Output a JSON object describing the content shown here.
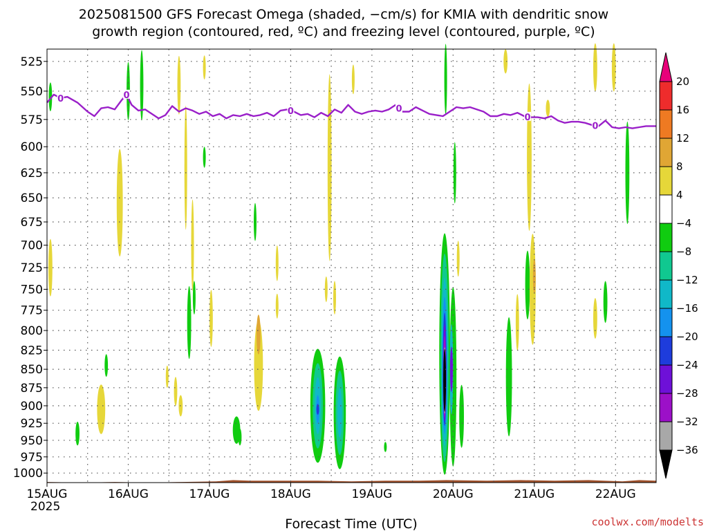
{
  "chart_data": {
    "type": "heatmap",
    "title_lines": [
      "2025081500 GFS Forecast Omega (shaded, −cm/s) for KMIA with dendritic snow",
      "growth region (contoured, red, ºC) and freezing level (contoured, purple, ºC)"
    ],
    "xlabel": "Forecast Time (UTC)",
    "ylabel": "",
    "x_year_label": "2025",
    "x_ticks": [
      {
        "label": "15AUG",
        "hour": 0
      },
      {
        "label": "16AUG",
        "hour": 24
      },
      {
        "label": "17AUG",
        "hour": 48
      },
      {
        "label": "18AUG",
        "hour": 72
      },
      {
        "label": "19AUG",
        "hour": 96
      },
      {
        "label": "20AUG",
        "hour": 120
      },
      {
        "label": "21AUG",
        "hour": 144
      },
      {
        "label": "22AUG",
        "hour": 168
      }
    ],
    "xlim_hours": [
      0,
      180
    ],
    "y_ticks": [
      "525",
      "550",
      "575",
      "600",
      "625",
      "650",
      "675",
      "700",
      "725",
      "750",
      "775",
      "800",
      "825",
      "850",
      "875",
      "900",
      "925",
      "950",
      "975",
      "1000"
    ],
    "y_scale": "log-pressure",
    "ylim": [
      1015,
      515
    ],
    "grid": true,
    "colorbar": {
      "labels": [
        "20",
        "16",
        "12",
        "8",
        "4",
        "−4",
        "−8",
        "−12",
        "−16",
        "−20",
        "−24",
        "−28",
        "−32",
        "−36"
      ],
      "colors": [
        "#e8007a",
        "#ee2c2c",
        "#ee7a22",
        "#e0a634",
        "#e6d739",
        "#ffffff",
        "#10cc10",
        "#10c890",
        "#10b8c8",
        "#1492ee",
        "#1e3cdc",
        "#6e10d8",
        "#9c10c8",
        "#a8a8a8",
        "#000000"
      ]
    },
    "omega_regions": [
      {
        "x": 1.0,
        "p": 555,
        "wx": 0.5,
        "wp": 25,
        "color": "#10cc10"
      },
      {
        "x": 1.0,
        "p": 725,
        "wx": 0.6,
        "wp": 65,
        "color": "#e6d739"
      },
      {
        "x": 9.0,
        "p": 940,
        "wx": 0.6,
        "wp": 35,
        "color": "#10cc10"
      },
      {
        "x": 16.0,
        "p": 905,
        "wx": 1.2,
        "wp": 70,
        "color": "#e6d739"
      },
      {
        "x": 17.5,
        "p": 845,
        "wx": 0.5,
        "wp": 30,
        "color": "#10cc10"
      },
      {
        "x": 21.5,
        "p": 655,
        "wx": 0.9,
        "wp": 110,
        "color": "#e6d739"
      },
      {
        "x": 24.0,
        "p": 550,
        "wx": 0.5,
        "wp": 50,
        "color": "#10cc10"
      },
      {
        "x": 28.0,
        "p": 545,
        "wx": 0.5,
        "wp": 60,
        "color": "#10cc10"
      },
      {
        "x": 35.5,
        "p": 860,
        "wx": 0.4,
        "wp": 30,
        "color": "#e6d739"
      },
      {
        "x": 38.0,
        "p": 880,
        "wx": 0.5,
        "wp": 40,
        "color": "#e6d739"
      },
      {
        "x": 39.5,
        "p": 900,
        "wx": 0.6,
        "wp": 30,
        "color": "#e6d739"
      },
      {
        "x": 39.0,
        "p": 545,
        "wx": 0.5,
        "wp": 50,
        "color": "#e6d739"
      },
      {
        "x": 41.0,
        "p": 620,
        "wx": 0.4,
        "wp": 120,
        "color": "#e6d739"
      },
      {
        "x": 42.0,
        "p": 790,
        "wx": 0.6,
        "wp": 90,
        "color": "#10cc10"
      },
      {
        "x": 43.0,
        "p": 700,
        "wx": 0.4,
        "wp": 100,
        "color": "#e6d739"
      },
      {
        "x": 43.5,
        "p": 760,
        "wx": 0.4,
        "wp": 40,
        "color": "#10cc10"
      },
      {
        "x": 46.5,
        "p": 610,
        "wx": 0.3,
        "wp": 20,
        "color": "#10cc10"
      },
      {
        "x": 46.5,
        "p": 530,
        "wx": 0.4,
        "wp": 20,
        "color": "#e6d739"
      },
      {
        "x": 48.5,
        "p": 785,
        "wx": 0.5,
        "wp": 70,
        "color": "#e6d739"
      },
      {
        "x": 56.0,
        "p": 935,
        "wx": 1.1,
        "wp": 40,
        "color": "#10cc10"
      },
      {
        "x": 57.0,
        "p": 945,
        "wx": 0.5,
        "wp": 25,
        "color": "#10cc10"
      },
      {
        "x": 62.5,
        "p": 845,
        "wx": 1.3,
        "wp": 120,
        "color": "#e6d739"
      },
      {
        "x": 62.5,
        "p": 805,
        "wx": 0.6,
        "wp": 50,
        "color": "#e0a634"
      },
      {
        "x": 61.5,
        "p": 675,
        "wx": 0.4,
        "wp": 40,
        "color": "#10cc10"
      },
      {
        "x": 68.0,
        "p": 720,
        "wx": 0.4,
        "wp": 40,
        "color": "#e6d739"
      },
      {
        "x": 68.0,
        "p": 770,
        "wx": 0.4,
        "wp": 30,
        "color": "#e6d739"
      },
      {
        "x": 80.0,
        "p": 900,
        "wx": 2.2,
        "wp": 160,
        "color": "#10cc10"
      },
      {
        "x": 80.0,
        "p": 900,
        "wx": 1.5,
        "wp": 120,
        "color": "#10c890"
      },
      {
        "x": 80.0,
        "p": 900,
        "wx": 0.9,
        "wp": 80,
        "color": "#10b8c8"
      },
      {
        "x": 80.0,
        "p": 905,
        "wx": 0.5,
        "wp": 40,
        "color": "#1492ee"
      },
      {
        "x": 80.0,
        "p": 905,
        "wx": 0.25,
        "wp": 15,
        "color": "#1e3cdc"
      },
      {
        "x": 86.5,
        "p": 910,
        "wx": 1.8,
        "wp": 160,
        "color": "#10cc10"
      },
      {
        "x": 86.5,
        "p": 910,
        "wx": 1.2,
        "wp": 120,
        "color": "#10c890"
      },
      {
        "x": 86.5,
        "p": 910,
        "wx": 0.7,
        "wp": 70,
        "color": "#10b8c8"
      },
      {
        "x": 82.5,
        "p": 750,
        "wx": 0.4,
        "wp": 30,
        "color": "#e6d739"
      },
      {
        "x": 83.5,
        "p": 620,
        "wx": 0.6,
        "wp": 180,
        "color": "#e6d739"
      },
      {
        "x": 85.0,
        "p": 760,
        "wx": 0.4,
        "wp": 40,
        "color": "#e6d739"
      },
      {
        "x": 90.5,
        "p": 540,
        "wx": 0.4,
        "wp": 25,
        "color": "#e6d739"
      },
      {
        "x": 100.0,
        "p": 960,
        "wx": 0.3,
        "wp": 15,
        "color": "#10cc10"
      },
      {
        "x": 117.5,
        "p": 830,
        "wx": 1.6,
        "wp": 310,
        "color": "#10cc10"
      },
      {
        "x": 117.5,
        "p": 835,
        "wx": 1.2,
        "wp": 270,
        "color": "#10c890"
      },
      {
        "x": 117.5,
        "p": 840,
        "wx": 0.9,
        "wp": 220,
        "color": "#10b8c8"
      },
      {
        "x": 117.5,
        "p": 845,
        "wx": 0.7,
        "wp": 180,
        "color": "#1492ee"
      },
      {
        "x": 117.5,
        "p": 850,
        "wx": 0.55,
        "wp": 150,
        "color": "#1e3cdc"
      },
      {
        "x": 117.5,
        "p": 855,
        "wx": 0.45,
        "wp": 130,
        "color": "#6e10d8"
      },
      {
        "x": 117.5,
        "p": 860,
        "wx": 0.35,
        "wp": 110,
        "color": "#9c10c8"
      },
      {
        "x": 117.5,
        "p": 865,
        "wx": 0.25,
        "wp": 90,
        "color": "#a8a8a8"
      },
      {
        "x": 117.5,
        "p": 865,
        "wx": 0.2,
        "wp": 85,
        "color": "#000000"
      },
      {
        "x": 120.0,
        "p": 860,
        "wx": 1.0,
        "wp": 240,
        "color": "#10cc10"
      },
      {
        "x": 119.5,
        "p": 850,
        "wx": 0.5,
        "wp": 120,
        "color": "#10b8c8"
      },
      {
        "x": 119.5,
        "p": 850,
        "wx": 0.35,
        "wp": 60,
        "color": "#6e10d8"
      },
      {
        "x": 122.5,
        "p": 915,
        "wx": 0.7,
        "wp": 90,
        "color": "#10cc10"
      },
      {
        "x": 117.8,
        "p": 540,
        "wx": 0.3,
        "wp": 60,
        "color": "#10cc10"
      },
      {
        "x": 120.5,
        "p": 625,
        "wx": 0.3,
        "wp": 60,
        "color": "#10cc10"
      },
      {
        "x": 121.5,
        "p": 715,
        "wx": 0.3,
        "wp": 40,
        "color": "#e6d739"
      },
      {
        "x": 135.5,
        "p": 525,
        "wx": 0.6,
        "wp": 20,
        "color": "#e6d739"
      },
      {
        "x": 136.5,
        "p": 860,
        "wx": 0.9,
        "wp": 160,
        "color": "#10cc10"
      },
      {
        "x": 139.0,
        "p": 790,
        "wx": 0.5,
        "wp": 70,
        "color": "#e6d739"
      },
      {
        "x": 142.0,
        "p": 745,
        "wx": 0.7,
        "wp": 80,
        "color": "#10cc10"
      },
      {
        "x": 142.5,
        "p": 610,
        "wx": 0.7,
        "wp": 140,
        "color": "#e6d739"
      },
      {
        "x": 143.5,
        "p": 750,
        "wx": 0.9,
        "wp": 130,
        "color": "#e6d739"
      },
      {
        "x": 144.0,
        "p": 735,
        "wx": 0.4,
        "wp": 40,
        "color": "#e0a634"
      },
      {
        "x": 148.0,
        "p": 565,
        "wx": 0.6,
        "wp": 15,
        "color": "#e6d739"
      },
      {
        "x": 162.0,
        "p": 785,
        "wx": 0.6,
        "wp": 50,
        "color": "#e6d739"
      },
      {
        "x": 165.0,
        "p": 765,
        "wx": 0.6,
        "wp": 50,
        "color": "#10cc10"
      },
      {
        "x": 162.0,
        "p": 530,
        "wx": 0.6,
        "wp": 40,
        "color": "#e6d739"
      },
      {
        "x": 167.5,
        "p": 530,
        "wx": 0.6,
        "wp": 40,
        "color": "#e6d739"
      },
      {
        "x": 171.5,
        "p": 625,
        "wx": 0.6,
        "wp": 100,
        "color": "#10cc10"
      }
    ],
    "freezing_level": {
      "contour_label": "0",
      "x": [
        0,
        2,
        4,
        6,
        9,
        12,
        14,
        16,
        18,
        20,
        22,
        23.5,
        25,
        27,
        29,
        31,
        33,
        35,
        37,
        39,
        41,
        43,
        45,
        47,
        49,
        51,
        53,
        55,
        57,
        59,
        61,
        63,
        65,
        67,
        69,
        71,
        73,
        75,
        77,
        79,
        81,
        83,
        85,
        87,
        89,
        91,
        93,
        95,
        97,
        99,
        101,
        103,
        105,
        107,
        109,
        111,
        113,
        115,
        117,
        119,
        121,
        123,
        125,
        127,
        129,
        131,
        133,
        135,
        137,
        139,
        141,
        143,
        145,
        147,
        149,
        151,
        153,
        155,
        157,
        159,
        161,
        163,
        165,
        167,
        169,
        171,
        173,
        175,
        177,
        180
      ],
      "p": [
        560,
        553,
        556,
        555,
        560,
        568,
        572,
        565,
        564,
        566,
        558,
        553,
        562,
        567,
        566,
        570,
        574,
        571,
        563,
        568,
        565,
        567,
        570,
        568,
        572,
        570,
        574,
        571,
        572,
        570,
        572,
        571,
        569,
        572,
        567,
        566,
        568,
        571,
        570,
        573,
        569,
        572,
        566,
        569,
        562,
        568,
        570,
        568,
        567,
        568,
        566,
        562,
        568,
        568,
        564,
        567,
        570,
        571,
        572,
        568,
        564,
        565,
        564,
        566,
        568,
        572,
        572,
        570,
        571,
        569,
        572,
        573,
        573,
        574,
        572,
        576,
        578,
        577,
        577,
        578,
        580,
        581,
        576,
        582,
        583,
        582,
        583,
        582,
        581,
        581
      ],
      "label_x": [
        4,
        23.5,
        72,
        104,
        142,
        162
      ]
    },
    "terrain_pressure_profile": {
      "x": [
        0,
        10,
        20,
        30,
        40,
        50,
        55,
        60,
        70,
        80,
        90,
        100,
        110,
        118,
        130,
        140,
        150,
        160,
        170,
        175,
        180
      ],
      "p": [
        1014,
        1015,
        1014,
        1015,
        1014,
        1013,
        1011,
        1012,
        1012,
        1012,
        1013,
        1012,
        1012,
        1011,
        1012,
        1011,
        1012,
        1011,
        1013,
        1011,
        1012
      ]
    },
    "watermark": "coolwx.com/modelts"
  }
}
